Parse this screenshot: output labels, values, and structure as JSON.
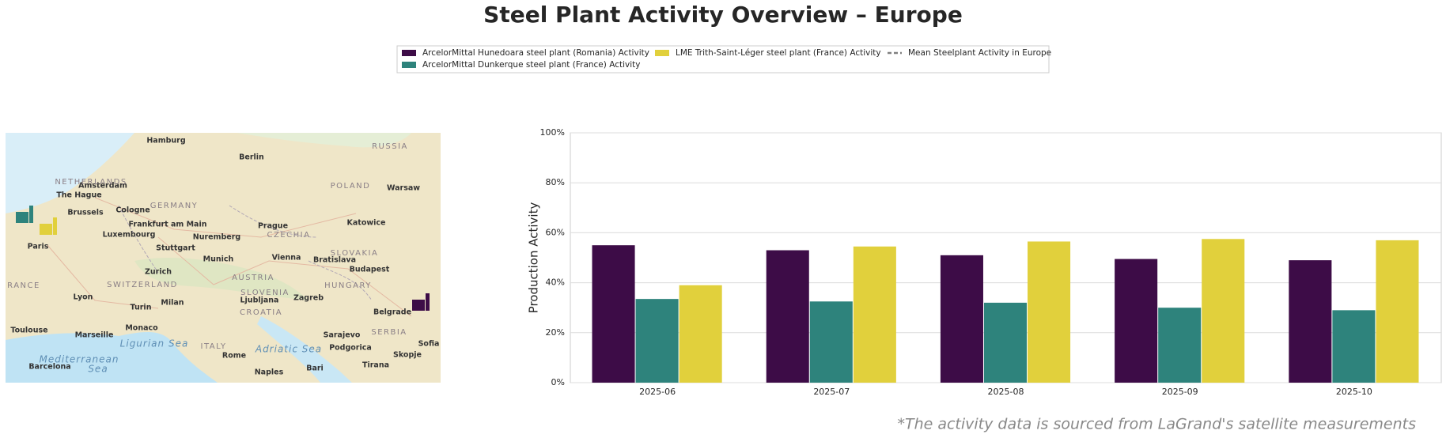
{
  "title": "Steel Plant Activity Overview – Europe",
  "map": {
    "cities": [
      "Hamburg",
      "Berlin",
      "Amsterdam",
      "The Hague",
      "Brussels",
      "Cologne",
      "Frankfurt am Main",
      "Luxembourg",
      "Paris",
      "Stuttgart",
      "Nuremberg",
      "Prague",
      "Munich",
      "Vienna",
      "Bratislava",
      "Katowice",
      "Warsaw",
      "Budapest",
      "Zurich",
      "Lyon",
      "Milan",
      "Turin",
      "Ljubljana",
      "Zagreb",
      "Belgrade",
      "Monaco",
      "Marseille",
      "Toulouse",
      "Barcelona",
      "Rome",
      "Naples",
      "Bari",
      "Sarajevo",
      "Podgorica",
      "Skopje",
      "Tirana",
      "Sofia"
    ],
    "countries": [
      "NETHERLANDS",
      "GERMANY",
      "POLAND",
      "CZECHIA",
      "SLOVAKIA",
      "AUSTRIA",
      "HUNGARY",
      "SWITZERLAND",
      "SLOVENIA",
      "CROATIA",
      "ITALY",
      "SERBIA",
      "RANCE",
      "RUSSIA"
    ],
    "seas": [
      "Mediterranean",
      "Sea",
      "Ligurian Sea",
      "Adriatic Sea"
    ]
  },
  "chart_data": {
    "type": "bar",
    "ylabel": "Production Activity",
    "categories": [
      "2025-06",
      "2025-07",
      "2025-08",
      "2025-09",
      "2025-10"
    ],
    "series": [
      {
        "name": "ArcelorMittal Hunedoara steel plant (Romania) Activity",
        "color": "#3d0c47",
        "values": [
          55,
          53,
          51,
          49.5,
          49
        ]
      },
      {
        "name": "ArcelorMittal Dunkerque steel plant (France) Activity",
        "color": "#2e837c",
        "values": [
          33.5,
          32.5,
          32,
          30,
          29
        ]
      },
      {
        "name": "LME Trith-Saint-Léger steel plant (France) Activity",
        "color": "#e1d03c",
        "values": [
          39,
          54.5,
          56.5,
          57.5,
          57
        ]
      }
    ],
    "reference_lines": [
      {
        "name": "Mean Steelplant Activity in Europe",
        "color": "#808080",
        "style": "dashed"
      }
    ],
    "ylim": [
      0,
      100
    ],
    "yticks": [
      {
        "value": 0,
        "label": "0%"
      },
      {
        "value": 20,
        "label": "20%"
      },
      {
        "value": 40,
        "label": "40%"
      },
      {
        "value": 60,
        "label": "60%"
      },
      {
        "value": 80,
        "label": "80%"
      },
      {
        "value": 100,
        "label": "100%"
      }
    ],
    "grid": true,
    "legend": "upper center"
  },
  "footnote": "*The activity data is sourced from LaGrand's satellite measurements"
}
